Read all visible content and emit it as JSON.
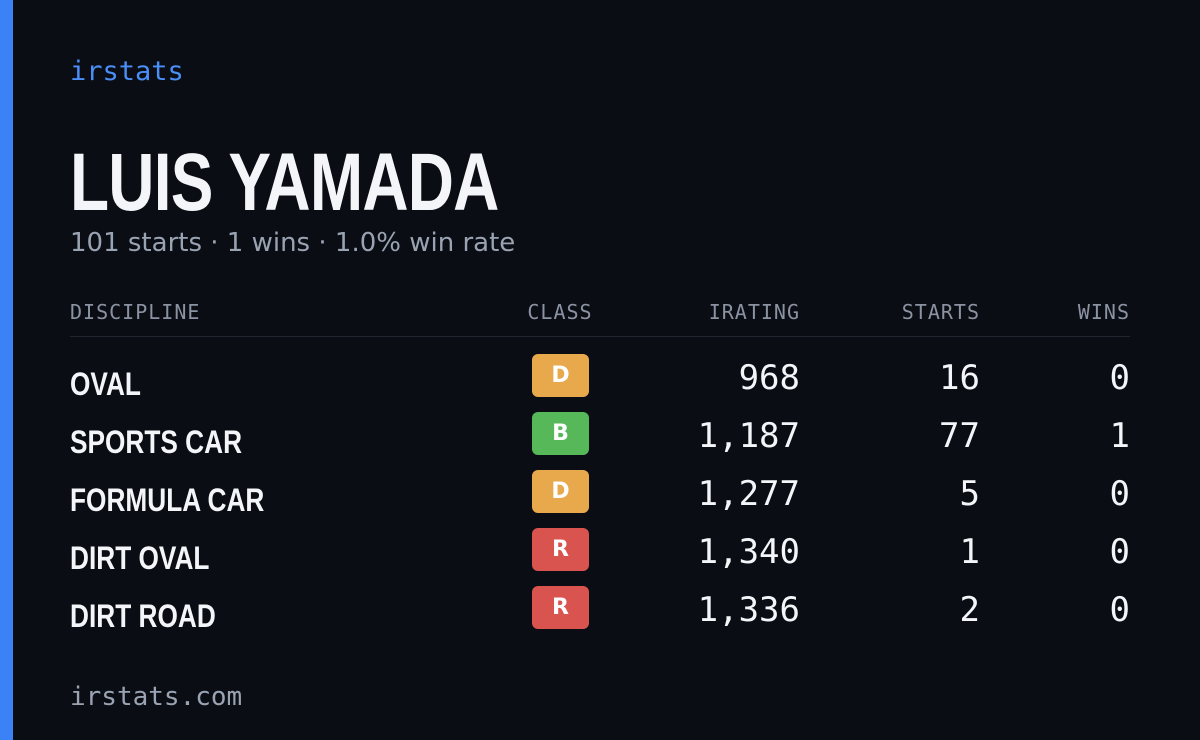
{
  "brand": "irstats",
  "driver": {
    "name": "LUIS YAMADA",
    "summary": "101 starts · 1 wins · 1.0% win rate"
  },
  "table": {
    "headers": {
      "discipline": "DISCIPLINE",
      "class": "CLASS",
      "irating": "IRATING",
      "starts": "STARTS",
      "wins": "WINS"
    },
    "rows": [
      {
        "discipline": "OVAL",
        "class": "D",
        "class_color": "#e8a84c",
        "irating": "968",
        "starts": "16",
        "wins": "0"
      },
      {
        "discipline": "SPORTS CAR",
        "class": "B",
        "class_color": "#57b85a",
        "irating": "1,187",
        "starts": "77",
        "wins": "1"
      },
      {
        "discipline": "FORMULA CAR",
        "class": "D",
        "class_color": "#e8a84c",
        "irating": "1,277",
        "starts": "5",
        "wins": "0"
      },
      {
        "discipline": "DIRT OVAL",
        "class": "R",
        "class_color": "#d9534f",
        "irating": "1,340",
        "starts": "1",
        "wins": "0"
      },
      {
        "discipline": "DIRT ROAD",
        "class": "R",
        "class_color": "#d9534f",
        "irating": "1,336",
        "starts": "2",
        "wins": "0"
      }
    ]
  },
  "footer": "irstats.com",
  "colors": {
    "background": "#0a0d14",
    "accent": "#3b82f6"
  }
}
